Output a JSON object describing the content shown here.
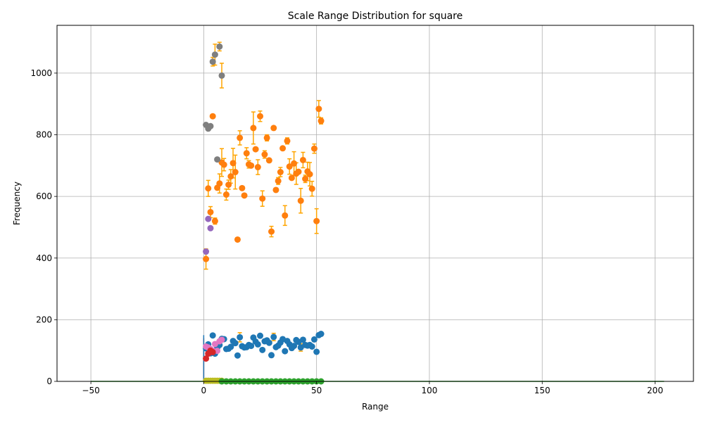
{
  "chart_data": {
    "type": "scatter",
    "title": "Scale Range Distribution for square",
    "xlabel": "Range",
    "ylabel": "Frequency",
    "xlim": [
      -65,
      217
    ],
    "ylim": [
      0,
      1155
    ],
    "xticks": [
      -50,
      0,
      50,
      100,
      150,
      200
    ],
    "yticks": [
      0,
      200,
      400,
      600,
      800,
      1000
    ],
    "grid": true,
    "legend": "none",
    "colors": {
      "blue": "#1f77b4",
      "orange": "#ff7f0e",
      "green": "#2ca02c",
      "red": "#d62728",
      "purple": "#9467bd",
      "pink": "#e377c2",
      "gray": "#7f7f7f",
      "olive": "#bcbd22",
      "errorbar": "#ffa500"
    },
    "series": [
      {
        "color": "#ff7f0e",
        "x": [
          1,
          2,
          3,
          4,
          5,
          6,
          7,
          8,
          9,
          10,
          11,
          12,
          13,
          14,
          15,
          16,
          17,
          18,
          19,
          20,
          21,
          22,
          23,
          24,
          25,
          26,
          27,
          28,
          29,
          30,
          31,
          32,
          33,
          34,
          35,
          36,
          37,
          38,
          39,
          40,
          41,
          42,
          43,
          44,
          45,
          46,
          47,
          48,
          49,
          50,
          51,
          52
        ],
        "y": [
          397,
          626,
          549,
          860,
          520,
          628,
          642,
          710,
          703,
          606,
          638,
          665,
          708,
          679,
          460,
          790,
          627,
          603,
          740,
          704,
          700,
          822,
          753,
          695,
          860,
          593,
          736,
          790,
          717,
          486,
          822,
          621,
          650,
          679,
          756,
          538,
          780,
          697,
          660,
          707,
          674,
          680,
          586,
          718,
          657,
          681,
          672,
          625,
          755,
          520,
          884,
          845
        ],
        "err": [
          33,
          26,
          18,
          6,
          10,
          6,
          31,
          45,
          20,
          18,
          15,
          22,
          48,
          55,
          0,
          23,
          0,
          0,
          18,
          12,
          0,
          52,
          0,
          24,
          17,
          25,
          12,
          10,
          0,
          17,
          0,
          0,
          11,
          15,
          0,
          32,
          10,
          25,
          0,
          38,
          35,
          0,
          40,
          25,
          12,
          30,
          38,
          24,
          15,
          40,
          27,
          10
        ]
      },
      {
        "color": "#1f77b4",
        "x": [
          1,
          2,
          3,
          4,
          5,
          6,
          7,
          8,
          9,
          10,
          11,
          12,
          13,
          14,
          15,
          16,
          17,
          18,
          19,
          20,
          21,
          22,
          23,
          24,
          25,
          26,
          27,
          28,
          29,
          30,
          31,
          32,
          33,
          34,
          35,
          36,
          37,
          38,
          39,
          40,
          41,
          42,
          43,
          44,
          45,
          46,
          47,
          48,
          49,
          50,
          51,
          52
        ],
        "y": [
          107,
          120,
          91,
          149,
          90,
          110,
          118,
          138,
          137,
          105,
          106,
          112,
          131,
          124,
          84,
          143,
          114,
          110,
          111,
          118,
          115,
          142,
          129,
          120,
          148,
          102,
          130,
          133,
          125,
          85,
          144,
          111,
          116,
          126,
          137,
          98,
          131,
          120,
          108,
          115,
          134,
          128,
          110,
          135,
          118,
          116,
          118,
          113,
          136,
          96,
          150,
          154
        ],
        "err": [
          0,
          0,
          0,
          0,
          0,
          0,
          0,
          0,
          0,
          0,
          0,
          0,
          0,
          0,
          0,
          15,
          0,
          0,
          0,
          0,
          0,
          0,
          0,
          0,
          0,
          0,
          0,
          0,
          0,
          0,
          12,
          0,
          0,
          0,
          0,
          0,
          0,
          0,
          0,
          0,
          0,
          0,
          12,
          0,
          0,
          0,
          0,
          0,
          0,
          0,
          0,
          0
        ]
      },
      {
        "color": "#9467bd",
        "x": [
          1,
          2,
          3
        ],
        "y": [
          421,
          527,
          497
        ],
        "err": [
          0,
          0,
          0
        ]
      },
      {
        "color": "#7f7f7f",
        "x": [
          1,
          2,
          3,
          4,
          5,
          6,
          7,
          8
        ],
        "y": [
          832,
          820,
          828,
          1037,
          1060,
          720,
          1086,
          992
        ],
        "err": [
          0,
          0,
          0,
          14,
          34,
          0,
          14,
          40
        ]
      },
      {
        "color": "#e377c2",
        "x": [
          1,
          2,
          3,
          4,
          5,
          6,
          7,
          8
        ],
        "y": [
          113,
          110,
          105,
          100,
          121,
          99,
          130,
          135
        ],
        "err": [
          0,
          0,
          0,
          0,
          0,
          0,
          0,
          0
        ]
      },
      {
        "color": "#d62728",
        "x": [
          1,
          2,
          3,
          4
        ],
        "y": [
          74,
          90,
          100,
          95
        ],
        "err": [
          0,
          0,
          0,
          0
        ]
      },
      {
        "color": "#bcbd22",
        "x": [
          1,
          2,
          3,
          4,
          5,
          6,
          7,
          8
        ],
        "y": [
          2,
          2,
          2,
          2,
          2,
          2,
          2,
          2
        ],
        "err": [
          0,
          0,
          0,
          0,
          0,
          0,
          0,
          0
        ]
      },
      {
        "color": "#2ca02c",
        "x": [
          8,
          10,
          12,
          14,
          16,
          18,
          20,
          22,
          24,
          26,
          28,
          30,
          32,
          34,
          36,
          38,
          40,
          42,
          44,
          46,
          48,
          50,
          52
        ],
        "y": [
          0,
          0,
          0,
          0,
          0,
          0,
          0,
          0,
          0,
          0,
          0,
          0,
          0,
          0,
          0,
          0,
          0,
          0,
          0,
          0,
          0,
          0,
          0
        ],
        "err": [
          0,
          0,
          0,
          0,
          0,
          0,
          0,
          0,
          0,
          0,
          0,
          0,
          0,
          0,
          0,
          0,
          0,
          0,
          0,
          0,
          0,
          0,
          0
        ]
      }
    ],
    "lines": [
      {
        "color": "#2ca02c",
        "x": [
          -50,
          204
        ],
        "y": [
          0,
          0
        ]
      },
      {
        "color": "#bcbd22",
        "x": [
          0,
          9
        ],
        "y": [
          2,
          2
        ]
      },
      {
        "color": "#d62728",
        "x": [
          0,
          0
        ],
        "y": [
          0,
          140
        ]
      },
      {
        "color": "#1f77b4",
        "x": [
          0,
          0
        ],
        "y": [
          0,
          150
        ]
      }
    ]
  }
}
